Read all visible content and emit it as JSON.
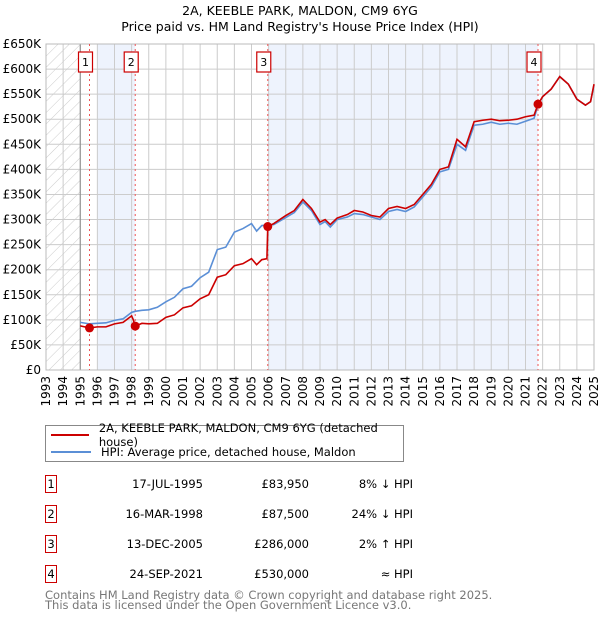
{
  "chart_data": {
    "type": "line",
    "title": "2A, KEEBLE PARK, MALDON, CM9 6YG",
    "subtitle": "Price paid vs. HM Land Registry's House Price Index (HPI)",
    "xlim": [
      1993,
      2025
    ],
    "ylim": [
      0,
      650000
    ],
    "x_ticks": [
      "1993",
      "1994",
      "1995",
      "1996",
      "1997",
      "1998",
      "1999",
      "2000",
      "2001",
      "2002",
      "2003",
      "2004",
      "2005",
      "2006",
      "2007",
      "2008",
      "2009",
      "2010",
      "2011",
      "2012",
      "2013",
      "2014",
      "2015",
      "2016",
      "2017",
      "2018",
      "2019",
      "2020",
      "2021",
      "2022",
      "2023",
      "2024",
      "2025"
    ],
    "y_ticks": [
      {
        "v": 0,
        "label": "£0"
      },
      {
        "v": 50000,
        "label": "£50K"
      },
      {
        "v": 100000,
        "label": "£100K"
      },
      {
        "v": 150000,
        "label": "£150K"
      },
      {
        "v": 200000,
        "label": "£200K"
      },
      {
        "v": 250000,
        "label": "£250K"
      },
      {
        "v": 300000,
        "label": "£300K"
      },
      {
        "v": 350000,
        "label": "£350K"
      },
      {
        "v": 400000,
        "label": "£400K"
      },
      {
        "v": 450000,
        "label": "£450K"
      },
      {
        "v": 500000,
        "label": "£500K"
      },
      {
        "v": 550000,
        "label": "£550K"
      },
      {
        "v": 600000,
        "label": "£600K"
      },
      {
        "v": 650000,
        "label": "£650K"
      }
    ],
    "grid": true,
    "series": [
      {
        "name": "2A, KEEBLE PARK, MALDON, CM9 6YG (detached house)",
        "color": "#cc0000",
        "x": [
          1995,
          1995.54,
          1996,
          1996.5,
          1997,
          1997.5,
          1998,
          1998.1,
          1998.21,
          1998.6,
          1999,
          1999.5,
          2000,
          2000.5,
          2001,
          2001.5,
          2002,
          2002.5,
          2003,
          2003.5,
          2004,
          2004.5,
          2005,
          2005.3,
          2005.6,
          2005.9,
          2005.95,
          2006.3,
          2007,
          2007.5,
          2008,
          2008.5,
          2009,
          2009.3,
          2009.6,
          2010,
          2010.6,
          2011,
          2011.5,
          2012,
          2012.5,
          2013,
          2013.5,
          2014,
          2014.5,
          2015,
          2015.5,
          2016,
          2016.5,
          2017,
          2017.5,
          2018,
          2018.5,
          2019,
          2019.5,
          2020,
          2020.5,
          2021,
          2021.5,
          2021.73,
          2022,
          2022.5,
          2023,
          2023.5,
          2024,
          2024.5,
          2024.8,
          2025
        ],
        "y": [
          88000,
          83950,
          86000,
          86000,
          92000,
          95000,
          108000,
          100000,
          87500,
          93000,
          92000,
          93000,
          105000,
          110000,
          124000,
          128000,
          142000,
          150000,
          185000,
          190000,
          208000,
          212000,
          222000,
          210000,
          220000,
          222000,
          286000,
          292000,
          308000,
          318000,
          340000,
          322000,
          295000,
          300000,
          290000,
          303000,
          310000,
          318000,
          315000,
          308000,
          305000,
          322000,
          326000,
          322000,
          330000,
          350000,
          370000,
          400000,
          405000,
          460000,
          445000,
          495000,
          498000,
          500000,
          497000,
          498000,
          500000,
          505000,
          508000,
          530000,
          545000,
          560000,
          585000,
          570000,
          540000,
          528000,
          535000,
          570000
        ]
      },
      {
        "name": "HPI: Average price, detached house, Maldon",
        "color": "#5b8fd6",
        "x": [
          1995,
          1995.54,
          1996,
          1996.5,
          1997,
          1997.5,
          1998,
          1998.21,
          1998.6,
          1999,
          1999.5,
          2000,
          2000.5,
          2001,
          2001.5,
          2002,
          2002.5,
          2003,
          2003.5,
          2004,
          2004.5,
          2005,
          2005.3,
          2005.6,
          2005.95,
          2006.3,
          2007,
          2007.5,
          2008,
          2008.5,
          2009,
          2009.3,
          2009.6,
          2010,
          2010.6,
          2011,
          2011.5,
          2012,
          2012.5,
          2013,
          2013.5,
          2014,
          2014.5,
          2015,
          2015.5,
          2016,
          2016.5,
          2017,
          2017.5,
          2018,
          2018.5,
          2019,
          2019.5,
          2020,
          2020.5,
          2021,
          2021.5,
          2021.73,
          2022,
          2022.5,
          2023,
          2023.5,
          2024,
          2024.5,
          2024.8,
          2025
        ],
        "y": [
          95000,
          92000,
          93000,
          94000,
          99000,
          102000,
          115000,
          117000,
          119000,
          120000,
          125000,
          136000,
          145000,
          162000,
          167000,
          184000,
          195000,
          240000,
          245000,
          275000,
          282000,
          292000,
          277000,
          288000,
          289000,
          290000,
          304000,
          314000,
          335000,
          318000,
          290000,
          296000,
          285000,
          300000,
          305000,
          312000,
          310000,
          305000,
          300000,
          316000,
          320000,
          316000,
          325000,
          345000,
          365000,
          395000,
          400000,
          450000,
          438000,
          488000,
          490000,
          494000,
          490000,
          492000,
          490000,
          496000,
          502000,
          528000,
          545000,
          560000,
          585000,
          570000,
          540000,
          528000,
          535000,
          568000
        ]
      }
    ],
    "sales": [
      {
        "n": "1",
        "x": 1995.54,
        "y": 83950
      },
      {
        "n": "2",
        "x": 1998.21,
        "y": 87500
      },
      {
        "n": "3",
        "x": 2005.95,
        "y": 286000
      },
      {
        "n": "4",
        "x": 2021.73,
        "y": 530000
      }
    ]
  },
  "legend": {
    "red_label": "2A, KEEBLE PARK, MALDON, CM9 6YG (detached house)",
    "blue_label": "HPI: Average price, detached house, Maldon"
  },
  "transactions": [
    {
      "n": "1",
      "date": "17-JUL-1995",
      "price": "£83,950",
      "hpi": "8% ↓ HPI"
    },
    {
      "n": "2",
      "date": "16-MAR-1998",
      "price": "£87,500",
      "hpi": "24% ↓ HPI"
    },
    {
      "n": "3",
      "date": "13-DEC-2005",
      "price": "£286,000",
      "hpi": "2% ↑ HPI"
    },
    {
      "n": "4",
      "date": "24-SEP-2021",
      "price": "£530,000",
      "hpi": "≈ HPI"
    }
  ],
  "footer": {
    "line1": "Contains HM Land Registry data © Crown copyright and database right 2025.",
    "line2": "This data is licensed under the Open Government Licence v3.0."
  }
}
